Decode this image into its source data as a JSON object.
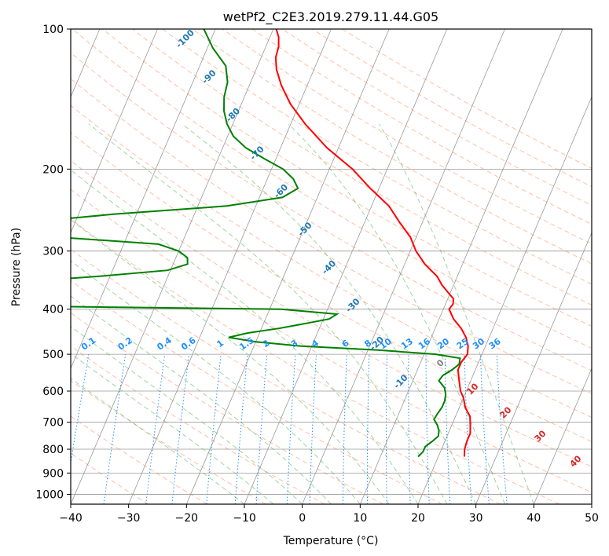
{
  "chart_data": {
    "type": "line",
    "subtype": "skew-t log-p diagram",
    "title": "wetPf2_C2E3.2019.279.11.44.G05",
    "xlabel": "Temperature (°C)",
    "ylabel": "Pressure (hPa)",
    "xlim": [
      -40,
      50
    ],
    "ylim": [
      1050,
      100
    ],
    "y_scale": "log",
    "x_ticks": [
      "−40",
      "−30",
      "−20",
      "−10",
      "0",
      "10",
      "20",
      "30",
      "40",
      "50"
    ],
    "y_ticks": [
      "100",
      "200",
      "300",
      "400",
      "500",
      "600",
      "700",
      "800",
      "900",
      "1000"
    ],
    "grid": true,
    "colors": {
      "temperature": "#ff0000",
      "dewpoint": "#008000",
      "isotherm": "#808080",
      "dry_adiabat": "#ff7f50",
      "moist_adiabat": "#2ca02c",
      "mixing_ratio": "#1e90ff",
      "wetbulb_label": "#1f77b4"
    },
    "series": [
      {
        "key": "temperature",
        "pressure": [
          830,
          800,
          770,
          740,
          710,
          680,
          650,
          620,
          600,
          570,
          540,
          520,
          500,
          480,
          460,
          440,
          420,
          400,
          390,
          380,
          370,
          355,
          340,
          320,
          300,
          280,
          260,
          240,
          220,
          200,
          180,
          160,
          145,
          132,
          122,
          115,
          109,
          104,
          100
        ],
        "temperature": [
          24.5,
          24.0,
          23.8,
          23.8,
          23.2,
          22.5,
          21.0,
          20.0,
          19.0,
          18.0,
          17.0,
          17.0,
          17.5,
          17.0,
          16.0,
          14.5,
          12.5,
          11.0,
          11.3,
          11.0,
          9.8,
          8.0,
          6.5,
          3.5,
          1.0,
          -1.0,
          -4.0,
          -7.0,
          -11.5,
          -16.0,
          -22.0,
          -27.5,
          -31.5,
          -34.5,
          -36.5,
          -37.5,
          -37.8,
          -38.5,
          -39.5
        ]
      },
      {
        "key": "dewpoint",
        "pressure": [
          830,
          810,
          790,
          770,
          750,
          730,
          710,
          690,
          670,
          650,
          630,
          610,
          590,
          570,
          555,
          540,
          525,
          510,
          500,
          490,
          480,
          470,
          460,
          450,
          440,
          430,
          420,
          410,
          400,
          395,
          390,
          380,
          370,
          360,
          350,
          340,
          330,
          320,
          310,
          300,
          290,
          280,
          270,
          260,
          250,
          240,
          230,
          220,
          210,
          200,
          190,
          180,
          170,
          160,
          150,
          140,
          130,
          120,
          110,
          100
        ],
        "dewpoint": [
          16.5,
          17.0,
          17.0,
          17.8,
          18.5,
          18.2,
          17.5,
          16.5,
          16.7,
          17.0,
          17.0,
          16.7,
          16.0,
          14.5,
          14.8,
          16.0,
          16.8,
          16.5,
          12.0,
          2.0,
          -12.0,
          -20.0,
          -25.0,
          -22.0,
          -17.0,
          -13.0,
          -9.0,
          -8.0,
          -18.0,
          -55.0,
          -70.0,
          -70.0,
          -70.0,
          -70.0,
          -66.0,
          -52.0,
          -40.5,
          -37.5,
          -38.0,
          -40.0,
          -44.0,
          -62.0,
          -66.0,
          -68.0,
          -54.0,
          -35.0,
          -26.0,
          -24.0,
          -25.5,
          -28.0,
          -32.0,
          -36.0,
          -39.0,
          -41.0,
          -42.5,
          -43.5,
          -44.0,
          -45.5,
          -49.0,
          -52.0
        ]
      }
    ],
    "wetbulb_labels": [
      "-100",
      "-90",
      "-80",
      "-70",
      "-60",
      "-50",
      "-40",
      "-30",
      "-20",
      "-10"
    ],
    "mixing_ratio_labels": [
      "0.1",
      "0.2",
      "0.4",
      "0.6",
      "1",
      "1.5",
      "2",
      "3",
      "4",
      "6",
      "8",
      "10",
      "13",
      "16",
      "20",
      "25",
      "30",
      "36"
    ],
    "dry_adiabat_labels": [
      "0",
      "10",
      "20",
      "30",
      "40"
    ]
  }
}
